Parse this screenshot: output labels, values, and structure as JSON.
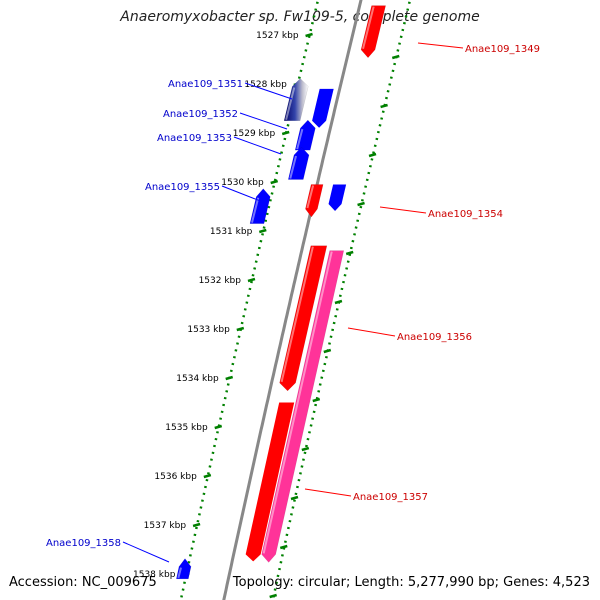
{
  "title": "Anaeromyxobacter sp. Fw109-5, complete genome",
  "footer": {
    "accession": "Accession: NC_009675",
    "summary": "Topology: circular; Length: 5,277,990 bp; Genes: 4,523"
  },
  "colors": {
    "forward_gene": "#ff0000",
    "forward_gene_alt": "#ff3399",
    "reverse_gene": "#0000ff",
    "reverse_gene_dark": "#000066",
    "scale_dots": "#008000",
    "backbone": "#888888",
    "forward_label": "#cc0000",
    "reverse_label": "#0000cc"
  },
  "scale_unit": "kbp",
  "ticks": [
    1527,
    1528,
    1529,
    1530,
    1531,
    1532,
    1533,
    1534,
    1535,
    1536,
    1537,
    1538
  ],
  "genes": [
    {
      "name": "Anae109_1349",
      "strand": "forward",
      "start_kbp": 1526.4,
      "end_kbp": 1527.3,
      "color": "red"
    },
    {
      "name": "Anae109_1351",
      "strand": "reverse",
      "start_kbp": 1528.05,
      "end_kbp": 1528.75,
      "color": "gradient"
    },
    {
      "name": "Anae109_1352",
      "strand": "reverse",
      "start_kbp": 1528.9,
      "end_kbp": 1529.35,
      "color": "blue"
    },
    {
      "name": "Anae109_1353",
      "strand": "reverse",
      "start_kbp": 1529.45,
      "end_kbp": 1529.95,
      "color": "blue"
    },
    {
      "name": "Anae109_1354",
      "strand": "forward",
      "start_kbp": 1530.05,
      "end_kbp": 1530.55,
      "color": "red"
    },
    {
      "name": "Anae109_1355",
      "strand": "reverse",
      "start_kbp": 1530.35,
      "end_kbp": 1530.9,
      "color": "blue"
    },
    {
      "name": "Anae109_1356",
      "strand": "forward",
      "start_kbp": 1531.3,
      "end_kbp": 1534.1,
      "color": "red"
    },
    {
      "name": "Anae109_1357",
      "strand": "forward",
      "start_kbp": 1531.4,
      "end_kbp": 1537.6,
      "color": "pink"
    },
    {
      "name": "Anae109_1358",
      "strand": "reverse",
      "start_kbp": 1537.85,
      "end_kbp": 1538.1,
      "color": "blue"
    }
  ]
}
